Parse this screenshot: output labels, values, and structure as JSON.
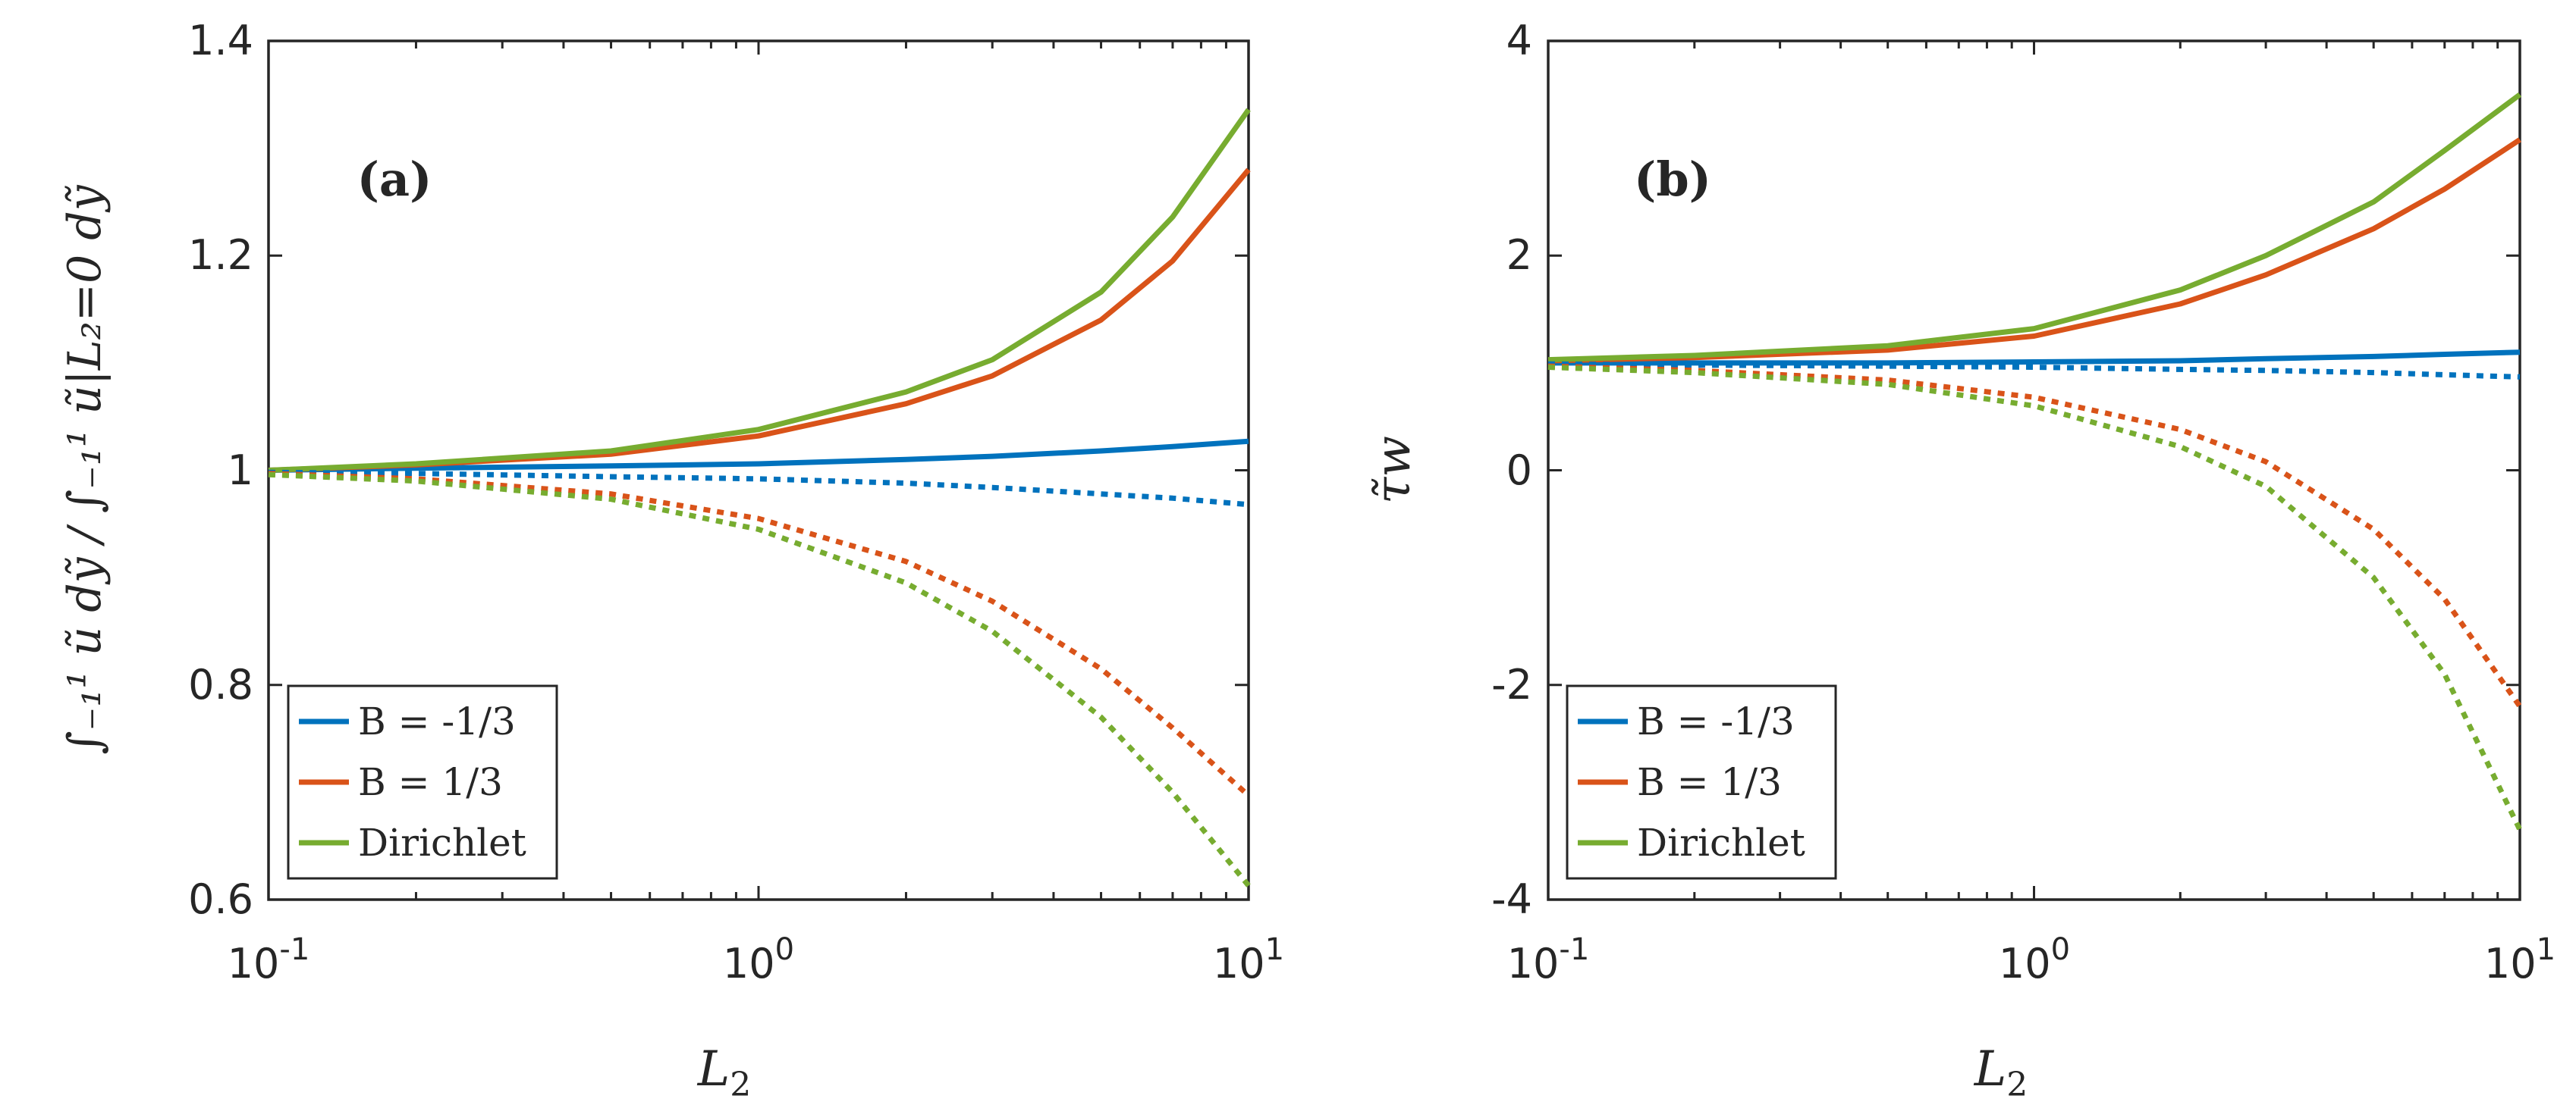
{
  "chart_data": [
    {
      "panel_label": "(a)",
      "type": "line",
      "xscale": "log",
      "xlim": [
        0.1,
        10
      ],
      "ylim": [
        0.6,
        1.4
      ],
      "xticks": [
        {
          "base": "10",
          "exp": "-1"
        },
        {
          "base": "10",
          "exp": "0"
        },
        {
          "base": "10",
          "exp": "1"
        }
      ],
      "yticks": [
        "0.6",
        "0.8",
        "1",
        "1.2",
        "1.4"
      ],
      "xlabel": {
        "main": "L",
        "sub": "2"
      },
      "ylabel": "∫₋₁¹ ũ dỹ / ∫₋₁¹ ũ|L₂=0 dỹ",
      "legend_position": "bottom-left",
      "x": [
        0.1,
        0.2,
        0.5,
        1,
        2,
        3,
        5,
        7,
        10
      ],
      "series": [
        {
          "name": "B = -1/3",
          "color": "#0072BD",
          "style": "solid",
          "values": [
            1.0,
            1.002,
            1.004,
            1.006,
            1.01,
            1.013,
            1.018,
            1.022,
            1.027
          ]
        },
        {
          "name": "B = 1/3",
          "color": "#D95319",
          "style": "solid",
          "values": [
            1.0,
            1.005,
            1.015,
            1.032,
            1.062,
            1.088,
            1.14,
            1.195,
            1.28
          ]
        },
        {
          "name": "Dirichlet",
          "color": "#77AC30",
          "style": "solid",
          "values": [
            1.0,
            1.006,
            1.018,
            1.038,
            1.073,
            1.103,
            1.166,
            1.236,
            1.336
          ]
        },
        {
          "name": "B = -1/3 (dotted)",
          "color": "#0072BD",
          "style": "dotted",
          "values": [
            0.998,
            0.997,
            0.994,
            0.992,
            0.988,
            0.984,
            0.978,
            0.974,
            0.968
          ]
        },
        {
          "name": "B = 1/3 (dotted)",
          "color": "#D95319",
          "style": "dotted",
          "values": [
            0.997,
            0.992,
            0.978,
            0.955,
            0.915,
            0.878,
            0.815,
            0.76,
            0.697
          ]
        },
        {
          "name": "Dirichlet (dotted)",
          "color": "#77AC30",
          "style": "dotted",
          "values": [
            0.996,
            0.99,
            0.973,
            0.945,
            0.895,
            0.85,
            0.77,
            0.7,
            0.613
          ]
        }
      ]
    },
    {
      "panel_label": "(b)",
      "type": "line",
      "xscale": "log",
      "xlim": [
        0.1,
        10
      ],
      "ylim": [
        -4,
        4
      ],
      "xticks": [
        {
          "base": "10",
          "exp": "-1"
        },
        {
          "base": "10",
          "exp": "0"
        },
        {
          "base": "10",
          "exp": "1"
        }
      ],
      "yticks": [
        "-4",
        "-2",
        "0",
        "2",
        "4"
      ],
      "xlabel": {
        "main": "L",
        "sub": "2"
      },
      "ylabel": "τ̃w",
      "legend_position": "bottom-left",
      "x": [
        0.1,
        0.2,
        0.5,
        1,
        2,
        3,
        5,
        7,
        10
      ],
      "series": [
        {
          "name": "B = -1/3",
          "color": "#0072BD",
          "style": "solid",
          "values": [
            1.0,
            1.0,
            1.0,
            1.01,
            1.02,
            1.04,
            1.06,
            1.08,
            1.1
          ]
        },
        {
          "name": "B = 1/3",
          "color": "#D95319",
          "style": "solid",
          "values": [
            1.02,
            1.05,
            1.12,
            1.25,
            1.55,
            1.82,
            2.25,
            2.62,
            3.08
          ]
        },
        {
          "name": "Dirichlet",
          "color": "#77AC30",
          "style": "solid",
          "values": [
            1.03,
            1.07,
            1.16,
            1.32,
            1.68,
            2.0,
            2.5,
            2.98,
            3.5
          ]
        },
        {
          "name": "B = -1/3 (dotted)",
          "color": "#0072BD",
          "style": "dotted",
          "values": [
            0.99,
            0.98,
            0.97,
            0.96,
            0.94,
            0.93,
            0.91,
            0.89,
            0.87
          ]
        },
        {
          "name": "B = 1/3 (dotted)",
          "color": "#D95319",
          "style": "dotted",
          "values": [
            0.97,
            0.93,
            0.84,
            0.68,
            0.38,
            0.08,
            -0.55,
            -1.2,
            -2.2
          ]
        },
        {
          "name": "Dirichlet (dotted)",
          "color": "#77AC30",
          "style": "dotted",
          "values": [
            0.96,
            0.91,
            0.8,
            0.6,
            0.22,
            -0.15,
            -1.0,
            -1.9,
            -3.35
          ]
        }
      ]
    }
  ]
}
